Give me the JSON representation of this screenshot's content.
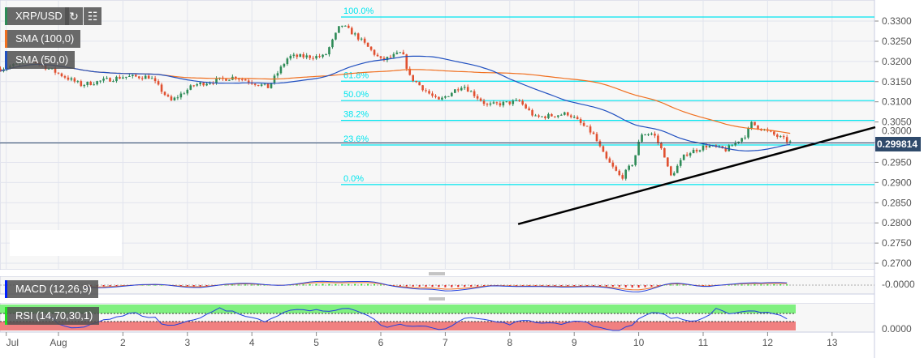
{
  "header": {
    "symbol": "XRP/USD",
    "refresh_icon": "refresh-icon",
    "bars_icon": "bar-chart-icon"
  },
  "indicators": {
    "sma100": "SMA (100,0)",
    "sma50": "SMA (50,0)",
    "macd": "MACD (12,26,9)",
    "rsi": "RSI (14,70,30,1)"
  },
  "current_price": "0.299814",
  "macd_axis_label": "-0.0000",
  "rsi_axis_label": "0.0000",
  "colors": {
    "up": "#2e8b57",
    "down": "#e05030",
    "sma100": "#f07020",
    "sma50": "#2050c0",
    "fib": "#00e5ee",
    "trend": "#000000",
    "rsi_over": "#80f080",
    "rsi_under": "#f08080"
  },
  "chart_data": {
    "type": "candlestick",
    "x_unit": "day of August",
    "x_ticks": [
      {
        "label": "Jul",
        "x": 0.19
      },
      {
        "label": "Aug",
        "x": 1
      },
      {
        "label": "2",
        "x": 2
      },
      {
        "label": "3",
        "x": 3
      },
      {
        "label": "4",
        "x": 4
      },
      {
        "label": "5",
        "x": 5
      },
      {
        "label": "6",
        "x": 6
      },
      {
        "label": "7",
        "x": 7
      },
      {
        "label": "8",
        "x": 8
      },
      {
        "label": "9",
        "x": 9
      },
      {
        "label": "10",
        "x": 10
      },
      {
        "label": "11",
        "x": 11
      },
      {
        "label": "12",
        "x": 12
      },
      {
        "label": "13",
        "x": 13
      }
    ],
    "y_ticks": [
      "0.3300",
      "0.3250",
      "0.3200",
      "0.3150",
      "0.3100",
      "0.3050",
      "0.3000",
      "0.2950",
      "0.2900",
      "0.2850",
      "0.2800",
      "0.2750",
      "0.2700"
    ],
    "ylim": [
      0.269,
      0.3347
    ],
    "xlim": [
      0.1,
      14.25
    ],
    "price_path": [
      [
        0.1,
        0.3182
      ],
      [
        0.6,
        0.3202
      ],
      [
        0.85,
        0.3182
      ],
      [
        1.35,
        0.3142
      ],
      [
        2.0,
        0.3162
      ],
      [
        2.42,
        0.3162
      ],
      [
        2.74,
        0.3101
      ],
      [
        3.11,
        0.3142
      ],
      [
        3.74,
        0.3162
      ],
      [
        4.25,
        0.3136
      ],
      [
        4.57,
        0.3212
      ],
      [
        5.13,
        0.3212
      ],
      [
        5.38,
        0.3292
      ],
      [
        5.63,
        0.3262
      ],
      [
        6.01,
        0.3202
      ],
      [
        6.33,
        0.3222
      ],
      [
        6.45,
        0.3162
      ],
      [
        6.89,
        0.3101
      ],
      [
        7.27,
        0.3142
      ],
      [
        7.65,
        0.3091
      ],
      [
        8.15,
        0.3101
      ],
      [
        8.4,
        0.3061
      ],
      [
        8.91,
        0.3071
      ],
      [
        9.29,
        0.3021
      ],
      [
        9.48,
        0.2961
      ],
      [
        9.73,
        0.2911
      ],
      [
        9.92,
        0.2951
      ],
      [
        10.04,
        0.3021
      ],
      [
        10.23,
        0.3021
      ],
      [
        10.42,
        0.2961
      ],
      [
        10.48,
        0.2911
      ],
      [
        10.73,
        0.2971
      ],
      [
        11.05,
        0.2991
      ],
      [
        11.36,
        0.2981
      ],
      [
        11.68,
        0.3021
      ],
      [
        11.74,
        0.3047
      ],
      [
        12.06,
        0.3021
      ],
      [
        12.37,
        0.2998
      ]
    ],
    "fibonacci": [
      {
        "label": "100.0%",
        "value": 0.331
      },
      {
        "label": "61.8%",
        "value": 0.3151
      },
      {
        "label": "50.0%",
        "value": 0.3103
      },
      {
        "label": "38.2%",
        "value": 0.3054
      },
      {
        "label": "23.6%",
        "value": 0.2993
      },
      {
        "label": "0.0%",
        "value": 0.2895
      }
    ],
    "trendline": [
      [
        8.13,
        0.2797
      ],
      [
        13.67,
        0.3037
      ]
    ],
    "sma_periods": [
      100,
      50
    ]
  }
}
